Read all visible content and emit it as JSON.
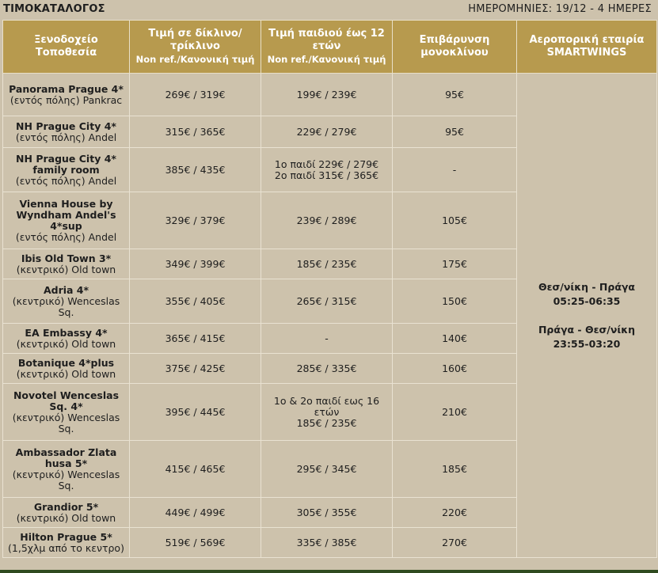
{
  "header": {
    "title": "ΤΙΜΟΚΑΤΑΛΟΓΟΣ",
    "dates": "ΗΜΕΡΟΜΗΝΙΕΣ: 19/12 - 4 ΗΜΕΡΕΣ"
  },
  "columns": {
    "hotel": "Ξενοδοχείο Τοποθεσία",
    "double": "Τιμή σε δίκλινο/ τρίκλινο",
    "double_sub": "Non ref./Κανονική τιμή",
    "child": "Τιμή παιδιού έως 12 ετών",
    "child_sub": "Non ref./Κανονική τιμή",
    "single": "Επιβάρυνση μονοκλίνου",
    "airline": "Αεροπορική εταιρία SMARTWINGS"
  },
  "rows": [
    {
      "name": "Panorama Prague 4*",
      "loc": "(εντός πόλης) Pankrac",
      "double": "269€ / 319€",
      "child": "199€ / 239€",
      "child2": "",
      "single": "95€"
    },
    {
      "name": "NH Prague City 4*",
      "loc": "(εντός πόλης) Andel",
      "double": "315€ / 365€",
      "child": "229€ / 279€",
      "child2": "",
      "single": "95€"
    },
    {
      "name": "NH Prague City 4* family room",
      "loc": "(εντός πόλης) Andel",
      "double": "385€ / 435€",
      "child": "1ο παιδί 229€ / 279€",
      "child2": "2ο παιδί 315€ / 365€",
      "single": "-"
    },
    {
      "name": "Vienna House by Wyndham Andel's 4*sup",
      "loc": "(εντός πόλης) Andel",
      "double": "329€ / 379€",
      "child": "239€ / 289€",
      "child2": "",
      "single": "105€"
    },
    {
      "name": "Ibis Old Town 3*",
      "loc": "(κεντρικό) Old town",
      "double": "349€ / 399€",
      "child": "185€ / 235€",
      "child2": "",
      "single": "175€"
    },
    {
      "name": "Adria 4*",
      "loc": "(κεντρικό) Wenceslas Sq.",
      "double": "355€ / 405€",
      "child": "265€ / 315€",
      "child2": "",
      "single": "150€"
    },
    {
      "name": "EA Embassy 4*",
      "loc": "(κεντρικό) Old town",
      "double": "365€ / 415€",
      "child": "-",
      "child2": "",
      "single": "140€"
    },
    {
      "name": "Botanique 4*plus",
      "loc": "(κεντρικό) Old town",
      "double": "375€ / 425€",
      "child": "285€ / 335€",
      "child2": "",
      "single": "160€"
    },
    {
      "name": "Novotel Wenceslas Sq. 4*",
      "loc": "(κεντρικό) Wenceslas Sq.",
      "double": "395€ / 445€",
      "child": "1ο & 2ο παιδί εως 16 ετών",
      "child2": "185€ / 235€",
      "single": "210€"
    },
    {
      "name": "Ambassador Zlata husa 5*",
      "loc": "(κεντρικό) Wenceslas Sq.",
      "double": "415€ / 465€",
      "child": "295€ / 345€",
      "child2": "",
      "single": "185€"
    },
    {
      "name": "Grandior 5*",
      "loc": "(κεντρικό) Old town",
      "double": "449€ / 499€",
      "child": "305€ / 355€",
      "child2": "",
      "single": "220€"
    },
    {
      "name": "Hilton Prague 5*",
      "loc": "(1,5χλμ από το κεντρο)",
      "double": "519€ / 569€",
      "child": "335€ / 385€",
      "child2": "",
      "single": "270€"
    }
  ],
  "flights": {
    "outbound_route": "Θεσ/νίκη - Πράγα",
    "outbound_time": "05:25-06:35",
    "return_route": "Πράγα - Θεσ/νίκη",
    "return_time": "23:55-03:20"
  }
}
